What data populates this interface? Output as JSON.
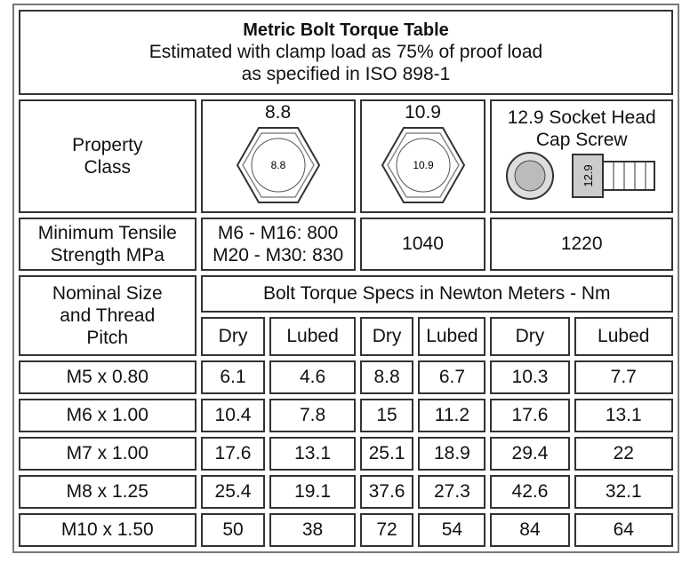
{
  "header": {
    "title": "Metric Bolt Torque Table",
    "subtitle": [
      "Estimated with clamp load as 75% of proof load",
      "as specified in ISO 898-1"
    ]
  },
  "property_class": {
    "label": "Property Class",
    "classes": [
      {
        "name": "8.8",
        "icon_label": "8.8"
      },
      {
        "name": "10.9",
        "icon_label": "10.9"
      },
      {
        "name": "12.9 Socket Head Cap Screw",
        "icon_label": "12.9"
      }
    ]
  },
  "tensile": {
    "label": "Minimum Tensile Strength MPa",
    "values": [
      [
        "M6 - M16: 800",
        "M20 - M30: 830"
      ],
      "1040",
      "1220"
    ]
  },
  "table": {
    "size_header": "Nominal Size and Thread Pitch",
    "torque_header": "Bolt Torque Specs in Newton Meters - Nm",
    "columns": [
      "Dry",
      "Lubed",
      "Dry",
      "Lubed",
      "Dry",
      "Lubed"
    ],
    "rows": [
      [
        "M5 x 0.80",
        6.1,
        4.6,
        8.8,
        6.7,
        10.3,
        7.7
      ],
      [
        "M6 x 1.00",
        10.4,
        7.8,
        15,
        11.2,
        17.6,
        13.1
      ],
      [
        "M7 x 1.00",
        17.6,
        13.1,
        25.1,
        18.9,
        29.4,
        22
      ],
      [
        "M8 x 1.25",
        25.4,
        19.1,
        37.6,
        27.3,
        42.6,
        32.1
      ],
      [
        "M10 x 1.50",
        50,
        38,
        72,
        54,
        84,
        64
      ]
    ]
  }
}
